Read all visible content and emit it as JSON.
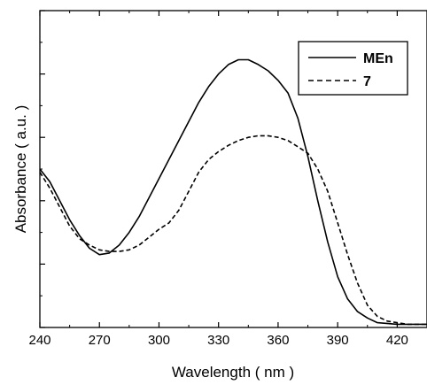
{
  "chart_data": {
    "type": "line",
    "xlabel": "Wavelength  ( nm )",
    "ylabel": "Absorbance ( a.u. )",
    "xlim": [
      240,
      435
    ],
    "ylim": [
      0,
      1.0
    ],
    "x_ticks": [
      240,
      270,
      300,
      330,
      360,
      390,
      420
    ],
    "y_ticks_labeled": false,
    "grid": false,
    "legend": {
      "position": "top-right",
      "framed": true
    },
    "series": [
      {
        "name": "MEn",
        "line_style": "solid",
        "color": "#000000",
        "points": [
          [
            240,
            0.5
          ],
          [
            245,
            0.46
          ],
          [
            250,
            0.4
          ],
          [
            255,
            0.34
          ],
          [
            260,
            0.29
          ],
          [
            265,
            0.25
          ],
          [
            270,
            0.23
          ],
          [
            275,
            0.235
          ],
          [
            280,
            0.26
          ],
          [
            285,
            0.3
          ],
          [
            290,
            0.35
          ],
          [
            295,
            0.41
          ],
          [
            300,
            0.47
          ],
          [
            305,
            0.53
          ],
          [
            310,
            0.59
          ],
          [
            315,
            0.65
          ],
          [
            320,
            0.71
          ],
          [
            325,
            0.76
          ],
          [
            330,
            0.8
          ],
          [
            335,
            0.83
          ],
          [
            340,
            0.845
          ],
          [
            345,
            0.845
          ],
          [
            350,
            0.83
          ],
          [
            355,
            0.81
          ],
          [
            360,
            0.78
          ],
          [
            365,
            0.74
          ],
          [
            370,
            0.66
          ],
          [
            375,
            0.54
          ],
          [
            380,
            0.4
          ],
          [
            385,
            0.27
          ],
          [
            390,
            0.16
          ],
          [
            395,
            0.09
          ],
          [
            400,
            0.05
          ],
          [
            405,
            0.03
          ],
          [
            410,
            0.015
          ],
          [
            420,
            0.01
          ],
          [
            435,
            0.01
          ]
        ]
      },
      {
        "name": "7",
        "line_style": "dashed",
        "color": "#000000",
        "points": [
          [
            240,
            0.49
          ],
          [
            245,
            0.44
          ],
          [
            250,
            0.38
          ],
          [
            255,
            0.32
          ],
          [
            260,
            0.28
          ],
          [
            265,
            0.26
          ],
          [
            270,
            0.245
          ],
          [
            275,
            0.24
          ],
          [
            280,
            0.24
          ],
          [
            285,
            0.245
          ],
          [
            290,
            0.26
          ],
          [
            295,
            0.285
          ],
          [
            300,
            0.31
          ],
          [
            305,
            0.33
          ],
          [
            310,
            0.37
          ],
          [
            315,
            0.43
          ],
          [
            320,
            0.49
          ],
          [
            325,
            0.53
          ],
          [
            330,
            0.555
          ],
          [
            335,
            0.575
          ],
          [
            340,
            0.59
          ],
          [
            345,
            0.6
          ],
          [
            350,
            0.605
          ],
          [
            355,
            0.605
          ],
          [
            360,
            0.6
          ],
          [
            365,
            0.59
          ],
          [
            370,
            0.57
          ],
          [
            375,
            0.55
          ],
          [
            380,
            0.5
          ],
          [
            385,
            0.43
          ],
          [
            390,
            0.33
          ],
          [
            395,
            0.23
          ],
          [
            400,
            0.14
          ],
          [
            405,
            0.07
          ],
          [
            410,
            0.035
          ],
          [
            415,
            0.02
          ],
          [
            425,
            0.01
          ],
          [
            435,
            0.01
          ]
        ]
      }
    ]
  }
}
